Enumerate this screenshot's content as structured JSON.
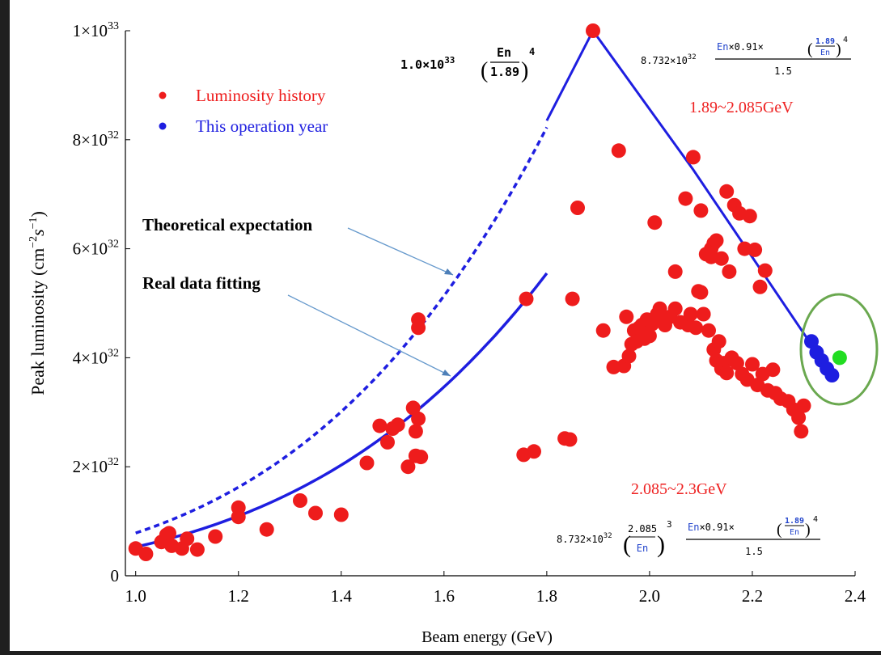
{
  "chart_data": {
    "type": "scatter",
    "xlabel": "Beam energy (GeV)",
    "ylabel_text": "Peak luminosity (cm",
    "ylabel_exp1": "−2",
    "ylabel_s": "s",
    "ylabel_exp2": "−1",
    "ylabel_close": ")",
    "xlim": [
      0.98,
      2.4
    ],
    "ylim": [
      0,
      1e+33
    ],
    "x_ticks": [
      "1.0",
      "1.2",
      "1.4",
      "1.6",
      "1.8",
      "2.0",
      "2.2",
      "2.4"
    ],
    "x_tick_values": [
      1.0,
      1.2,
      1.4,
      1.6,
      1.8,
      2.0,
      2.2,
      2.4
    ],
    "y_ticks": [
      {
        "value": 0,
        "mant": "0",
        "exp": ""
      },
      {
        "value": 2e+32,
        "mant": "2×10",
        "exp": "32"
      },
      {
        "value": 4e+32,
        "mant": "4×10",
        "exp": "32"
      },
      {
        "value": 6e+32,
        "mant": "6×10",
        "exp": "32"
      },
      {
        "value": 8e+32,
        "mant": "8×10",
        "exp": "32"
      },
      {
        "value": 1e+33,
        "mant": "1×10",
        "exp": "33"
      }
    ],
    "legend": [
      {
        "label": "Luminosity history",
        "color": "#ee1c1c"
      },
      {
        "label": "This operation year",
        "color": "#1e1ee0"
      }
    ],
    "legend_placement": "top-left",
    "series": [
      {
        "name": "Luminosity history",
        "color": "#ee1c1c",
        "points": [
          [
            1.0,
            0.5
          ],
          [
            1.02,
            0.4
          ],
          [
            1.05,
            0.62
          ],
          [
            1.06,
            0.75
          ],
          [
            1.065,
            0.78
          ],
          [
            1.07,
            0.55
          ],
          [
            1.09,
            0.5
          ],
          [
            1.1,
            0.68
          ],
          [
            1.12,
            0.48
          ],
          [
            1.155,
            0.72
          ],
          [
            1.2,
            1.08
          ],
          [
            1.2,
            1.25
          ],
          [
            1.255,
            0.85
          ],
          [
            1.32,
            1.38
          ],
          [
            1.35,
            1.15
          ],
          [
            1.4,
            1.12
          ],
          [
            1.45,
            2.07
          ],
          [
            1.475,
            2.75
          ],
          [
            1.49,
            2.45
          ],
          [
            1.5,
            2.7
          ],
          [
            1.51,
            2.77
          ],
          [
            1.53,
            2.0
          ],
          [
            1.54,
            3.08
          ],
          [
            1.545,
            2.65
          ],
          [
            1.545,
            2.2
          ],
          [
            1.55,
            2.88
          ],
          [
            1.55,
            4.55
          ],
          [
            1.555,
            2.18
          ],
          [
            1.55,
            4.7
          ],
          [
            1.755,
            2.22
          ],
          [
            1.76,
            5.08
          ],
          [
            1.775,
            2.28
          ],
          [
            1.835,
            2.52
          ],
          [
            1.845,
            2.5
          ],
          [
            1.85,
            5.08
          ],
          [
            1.86,
            6.75
          ],
          [
            1.89,
            10.0
          ],
          [
            1.91,
            4.5
          ],
          [
            1.93,
            3.83
          ],
          [
            1.94,
            7.8
          ],
          [
            1.95,
            3.85
          ],
          [
            1.955,
            4.75
          ],
          [
            1.96,
            4.03
          ],
          [
            1.965,
            4.25
          ],
          [
            1.97,
            4.5
          ],
          [
            1.975,
            4.3
          ],
          [
            1.98,
            4.55
          ],
          [
            1.985,
            4.6
          ],
          [
            1.99,
            4.35
          ],
          [
            1.995,
            4.7
          ],
          [
            2.0,
            4.4
          ],
          [
            2.005,
            4.62
          ],
          [
            2.01,
            6.48
          ],
          [
            2.015,
            4.8
          ],
          [
            2.02,
            4.9
          ],
          [
            2.03,
            4.6
          ],
          [
            2.04,
            4.75
          ],
          [
            2.05,
            5.58
          ],
          [
            2.05,
            4.9
          ],
          [
            2.06,
            4.65
          ],
          [
            2.07,
            6.92
          ],
          [
            2.075,
            4.6
          ],
          [
            2.08,
            4.8
          ],
          [
            2.085,
            7.68
          ],
          [
            2.09,
            4.55
          ],
          [
            2.095,
            5.22
          ],
          [
            2.1,
            6.7
          ],
          [
            2.1,
            5.2
          ],
          [
            2.105,
            4.8
          ],
          [
            2.11,
            5.9
          ],
          [
            2.115,
            4.5
          ],
          [
            2.12,
            6.0
          ],
          [
            2.12,
            5.85
          ],
          [
            2.125,
            4.15
          ],
          [
            2.125,
            6.1
          ],
          [
            2.13,
            3.95
          ],
          [
            2.13,
            6.15
          ],
          [
            2.135,
            4.3
          ],
          [
            2.14,
            3.8
          ],
          [
            2.14,
            5.82
          ],
          [
            2.145,
            3.9
          ],
          [
            2.15,
            7.05
          ],
          [
            2.15,
            3.72
          ],
          [
            2.155,
            5.58
          ],
          [
            2.16,
            4.0
          ],
          [
            2.165,
            6.8
          ],
          [
            2.17,
            3.9
          ],
          [
            2.175,
            6.65
          ],
          [
            2.18,
            3.7
          ],
          [
            2.185,
            6.0
          ],
          [
            2.19,
            3.6
          ],
          [
            2.195,
            6.6
          ],
          [
            2.2,
            3.88
          ],
          [
            2.205,
            5.98
          ],
          [
            2.21,
            3.5
          ],
          [
            2.215,
            5.3
          ],
          [
            2.22,
            3.7
          ],
          [
            2.225,
            5.6
          ],
          [
            2.23,
            3.4
          ],
          [
            2.24,
            3.78
          ],
          [
            2.245,
            3.35
          ],
          [
            2.255,
            3.25
          ],
          [
            2.27,
            3.2
          ],
          [
            2.28,
            3.05
          ],
          [
            2.29,
            2.9
          ],
          [
            2.295,
            2.65
          ],
          [
            2.3,
            3.12
          ]
        ],
        "y_unit": "1e32"
      },
      {
        "name": "This operation year",
        "color": "#1e1ee0",
        "points": [
          [
            2.315,
            4.3
          ],
          [
            2.325,
            4.1
          ],
          [
            2.335,
            3.95
          ],
          [
            2.345,
            3.8
          ],
          [
            2.355,
            3.68
          ]
        ],
        "y_unit": "1e32"
      },
      {
        "name": "",
        "color": "#22dd22",
        "points": [
          [
            2.37,
            4.0
          ]
        ],
        "y_unit": "1e32"
      }
    ],
    "fit_dashed": {
      "x_start": 1.0,
      "x_end": 1.8,
      "coef": 1e+33,
      "e0": 1.89,
      "power": 4
    },
    "fit_solid": {
      "x_start": 1.0,
      "x_end": 1.8,
      "coef": 5.55e+32,
      "e0": 1.8,
      "power": 4
    },
    "fit_peak_lines": [
      [
        1.8,
        8.35
      ],
      [
        1.89,
        10.0
      ],
      [
        2.085,
        7.45
      ],
      [
        2.355,
        3.68
      ]
    ],
    "annotations": {
      "theory": "Theoretical expectation",
      "realfit": "Real data fitting",
      "range1": "1.89~2.085GeV",
      "range2": "2.085~2.3GeV"
    },
    "formulas": {
      "f1_coef": "1.0×10",
      "f1_exp": "33",
      "f1_num": "En",
      "f1_den": "1.89",
      "f1_pow": "4",
      "f2_coef": "8.732×10",
      "f2_exp": "32",
      "f2_num_a": "En",
      "f2_num_b": "×0.91×",
      "f2_in_num": "1.89",
      "f2_in_den": "En",
      "f2_pow": "4",
      "f2_den": "1.5",
      "f3_coef": "8.732×10",
      "f3_exp": "32",
      "f3_in_num": "2.085",
      "f3_in_den": "En",
      "f3_pow": "3",
      "f3_num_a": "En",
      "f3_num_b": "×0.91×",
      "f3_in2_num": "1.89",
      "f3_in2_den": "En",
      "f3_pow2": "4",
      "f3_den": "1.5"
    }
  }
}
